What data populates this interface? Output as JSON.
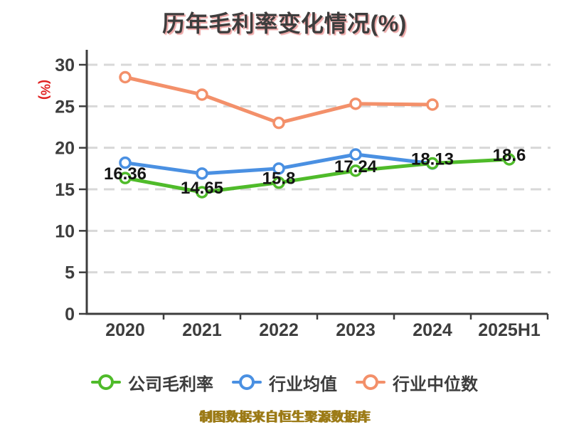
{
  "footer": {
    "caption": "制图数据来自恒生聚源数据库"
  },
  "chart_data": {
    "type": "line",
    "title": "历年毛利率变化情况(%)",
    "ylabel": "(%)",
    "xlabel": "",
    "categories": [
      "2020",
      "2021",
      "2022",
      "2023",
      "2024",
      "2025H1"
    ],
    "y_ticks": [
      0,
      5,
      10,
      15,
      20,
      25,
      30
    ],
    "ylim": [
      0,
      30
    ],
    "grid": "horizontal-dashed",
    "legend_position": "bottom",
    "series": [
      {
        "name": "公司毛利率",
        "color": "#4fbb2a",
        "values": [
          16.36,
          14.65,
          15.8,
          17.24,
          18.13,
          18.6
        ],
        "labels": [
          "16.36",
          "14.65",
          "15.8",
          "17.24",
          "18.13",
          "18.6"
        ],
        "show_labels": true
      },
      {
        "name": "行业均值",
        "color": "#4a90e2",
        "values": [
          18.2,
          16.9,
          17.5,
          19.2,
          18.1,
          null
        ],
        "show_labels": false
      },
      {
        "name": "行业中位数",
        "color": "#f3906a",
        "values": [
          28.5,
          26.4,
          23.0,
          25.3,
          25.2,
          null
        ],
        "show_labels": false
      }
    ],
    "style": {
      "axis_color": "#3d3d3d",
      "grid_color": "#d8d8d8",
      "tick_label_color": "#3d3d3d",
      "data_label_color": "#141414",
      "title_color": "#3d3d3d",
      "ylabel_color": "#e02121",
      "caption_color": "#9c7b17",
      "marker": "open-circle"
    }
  }
}
